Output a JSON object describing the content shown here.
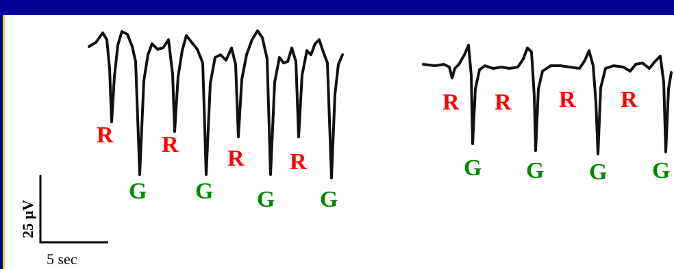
{
  "colors": {
    "frame": "#000099",
    "frame_accent": "#f2d21b",
    "label_r": "#ff0000",
    "label_g": "#008800",
    "trace": "#111111"
  },
  "panel_left": {
    "labels": {
      "r1": "R",
      "r2": "R",
      "r3": "R",
      "r4": "R",
      "g1": "G",
      "g2": "G",
      "g3": "G",
      "g4": "G"
    }
  },
  "panel_right": {
    "labels": {
      "r1": "R",
      "r2": "R",
      "r3": "R",
      "r4": "R",
      "g1": "G",
      "g2": "G",
      "g3": "G",
      "g4": "G"
    }
  },
  "scale_bar": {
    "vertical_label": "25 µV",
    "horizontal_label": "5 sec"
  }
}
